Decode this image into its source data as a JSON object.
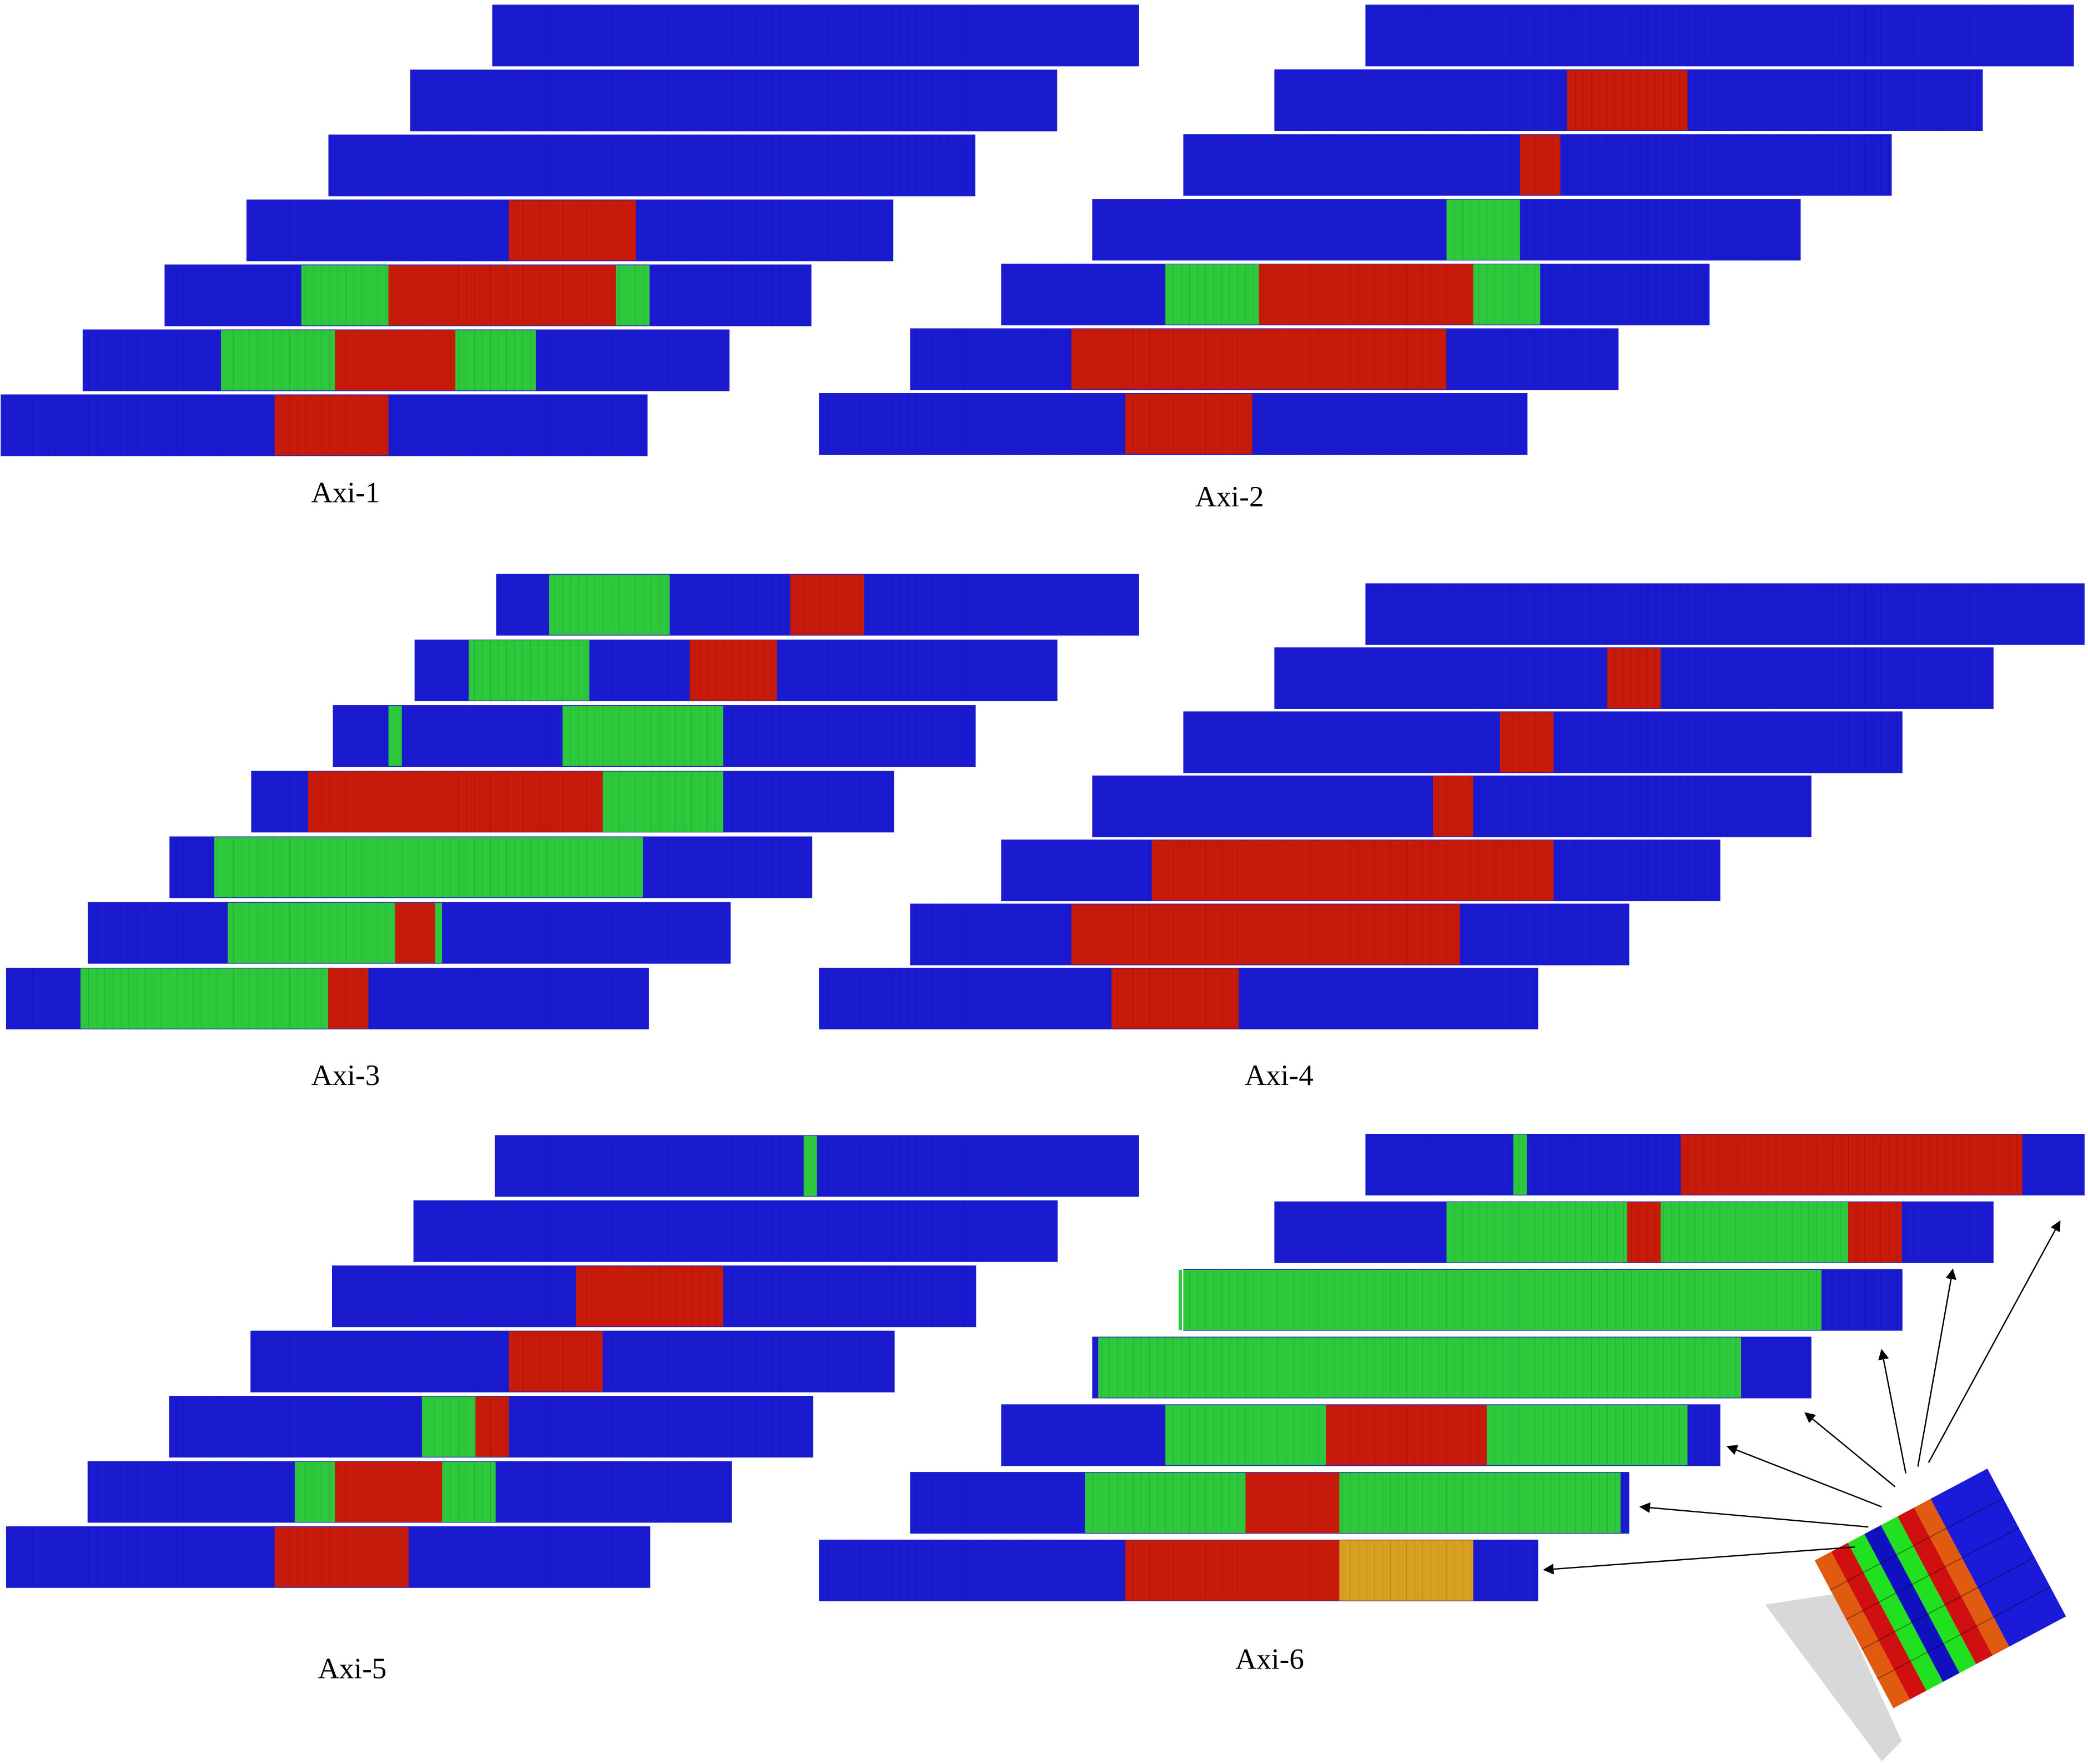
{
  "panels": [
    {
      "label": "Axi-1"
    },
    {
      "label": "Axi-2"
    },
    {
      "label": "Axi-3"
    },
    {
      "label": "Axi-4"
    },
    {
      "label": "Axi-5"
    },
    {
      "label": "Axi-6"
    }
  ]
}
